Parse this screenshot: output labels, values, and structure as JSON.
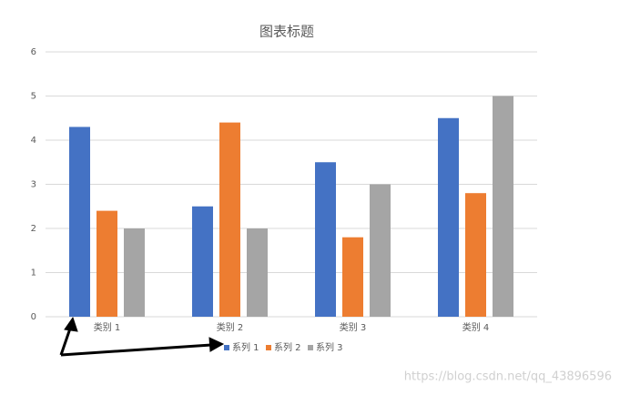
{
  "chart_data": {
    "type": "bar",
    "title": "图表标题",
    "categories": [
      "类别 1",
      "类别 2",
      "类别 3",
      "类别 4"
    ],
    "series": [
      {
        "name": "系列 1",
        "color": "#4472c4",
        "values": [
          4.3,
          2.5,
          3.5,
          4.5
        ]
      },
      {
        "name": "系列 2",
        "color": "#ed7d31",
        "values": [
          2.4,
          4.4,
          1.8,
          2.8
        ]
      },
      {
        "name": "系列 3",
        "color": "#a5a5a5",
        "values": [
          2,
          2,
          3,
          5
        ]
      }
    ],
    "ylim": [
      0,
      6
    ],
    "yticks": [
      0,
      1,
      2,
      3,
      4,
      5,
      6
    ],
    "grid": true,
    "legend": "bottom"
  },
  "watermark": "https://blog.csdn.net/qq_43896596"
}
